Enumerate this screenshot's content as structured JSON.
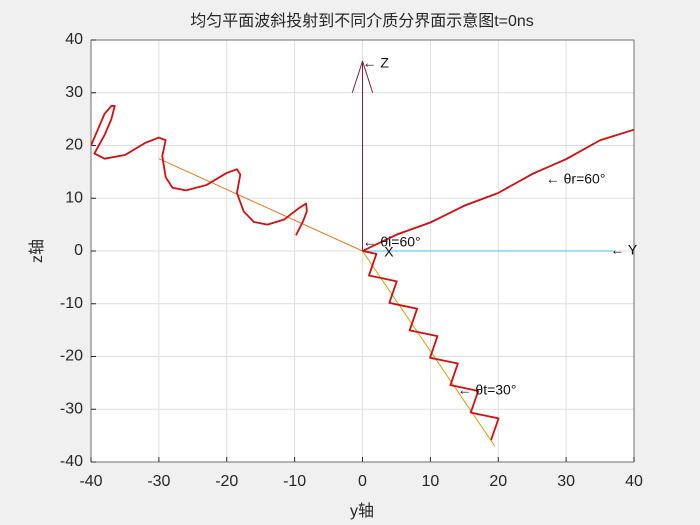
{
  "chart_data": {
    "type": "line",
    "title": "均匀平面波斜投射到不同介质分界面示意图t=0ns",
    "x_label": "y轴",
    "y_label": "z轴",
    "xlim": [
      -40,
      40
    ],
    "ylim": [
      -40,
      40
    ],
    "xticks": [
      -40,
      -30,
      -20,
      -10,
      0,
      10,
      20,
      30,
      40
    ],
    "yticks": [
      -40,
      -30,
      -20,
      -10,
      0,
      10,
      20,
      30,
      40
    ],
    "grid": true,
    "series": [
      {
        "color": "#e07b2a",
        "x": [
          -30,
          0
        ],
        "y": [
          17.5,
          0
        ]
      },
      {
        "color": "#d4a017",
        "x": [
          0,
          19.5
        ],
        "y": [
          0,
          -37
        ]
      },
      {
        "color": "#4dbeee",
        "x": [
          0,
          37
        ],
        "y": [
          0,
          0
        ]
      },
      {
        "color": "#7e1e3e",
        "x": [
          0,
          0
        ],
        "y": [
          0,
          36
        ]
      },
      {
        "color": "#7e1e3e",
        "x": [
          -1.5,
          0,
          1.5
        ],
        "y": [
          30,
          36,
          30
        ]
      },
      {
        "color": "#3040c0",
        "x": [
          0,
          5,
          10,
          15,
          20,
          25,
          30,
          35,
          40
        ],
        "y": [
          0,
          3,
          5.5,
          8.5,
          11,
          14.5,
          17.5,
          21,
          23
        ]
      },
      {
        "color": "#d01010",
        "x": [
          0,
          5,
          10,
          15,
          20,
          25,
          30,
          35,
          40
        ],
        "y": [
          0,
          3.1,
          5.4,
          8.6,
          11,
          14.6,
          17.4,
          21,
          23
        ]
      },
      {
        "color": "#d01010",
        "x": [
          -40,
          -39,
          -38,
          -37,
          -36.5,
          -37,
          -38,
          -39.5,
          -38,
          -35,
          -32,
          -30,
          -29,
          -29.5,
          -29,
          -28,
          -26,
          -23,
          -20,
          -18.5,
          -18,
          -18.5,
          -17.5,
          -16,
          -14,
          -11.5,
          -9.5,
          -8.3,
          -8.2,
          -8.8,
          -9.8
        ],
        "y": [
          20,
          23,
          26,
          27.5,
          27.5,
          25,
          22,
          18.5,
          17.5,
          18.2,
          20.5,
          21.5,
          21,
          18,
          14,
          12,
          11.5,
          12.5,
          14.8,
          15.5,
          14.5,
          11,
          7.5,
          5.5,
          5,
          6,
          8,
          9,
          7.5,
          5.5,
          3
        ]
      },
      {
        "color": "#d01010",
        "x": [
          0,
          2.05,
          1.5,
          0.95,
          3,
          5.05,
          4.5,
          3.95,
          6,
          8.05,
          7.5,
          6.95,
          9,
          11.05,
          10.5,
          9.95,
          12,
          14.05,
          13.5,
          12.95,
          15,
          17.05,
          16.5,
          15.95,
          18,
          20.05,
          19.5,
          18.95
        ],
        "y": [
          0,
          -0.55,
          -2.6,
          -4.65,
          -5.2,
          -5.75,
          -7.79,
          -9.84,
          -10.39,
          -10.94,
          -12.99,
          -15.04,
          -15.59,
          -16.14,
          -18.19,
          -20.24,
          -20.78,
          -21.33,
          -23.38,
          -25.43,
          -25.98,
          -26.53,
          -28.58,
          -30.63,
          -31.18,
          -31.73,
          -33.77,
          -35.82
        ]
      }
    ],
    "annotations": [
      {
        "text": "← Z",
        "x": 0,
        "y": 35.5
      },
      {
        "text": "← Y",
        "x": 36.5,
        "y": 0
      },
      {
        "text": "X",
        "x": 3.2,
        "y": -0.3
      },
      {
        "text": "← θi=60°",
        "x": 0,
        "y": 1.6
      },
      {
        "text": "← θr=60°",
        "x": 27,
        "y": 13.5
      },
      {
        "text": "← θt=30°",
        "x": 14,
        "y": -26.5
      }
    ]
  }
}
